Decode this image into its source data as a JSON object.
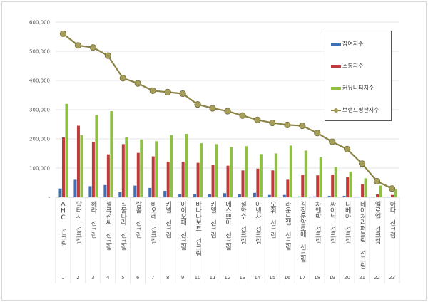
{
  "chart_data": {
    "type": "bar",
    "categories": [
      "AHC 선크림",
      "닥터지 선크림",
      "헤라 선크림",
      "셀퓨전씨 선크림",
      "식물나라 선크림",
      "랑콤 선크림",
      "비오레 선크림",
      "키넬 선크림",
      "아이오페 선크림",
      "바나나보트 선크림",
      "키엘 선크림",
      "에스쁘아 선크림",
      "설화수 선크림",
      "아넷사 선크림",
      "오휘 선크림",
      "라운드랩 선크림",
      "김정문알로에 선크림",
      "차앤박 선크림",
      "싸이닉 선크림",
      "니베아 선크림",
      "네이처리퍼블릭 선크림",
      "엘로엘 선크림",
      "아다 선크림"
    ],
    "category_numbers": [
      "1",
      "2",
      "3",
      "4",
      "5",
      "6",
      "7",
      "8",
      "9",
      "10",
      "11",
      "12",
      "13",
      "14",
      "15",
      "16",
      "17",
      "18",
      "19",
      "20",
      "21",
      "22",
      "23"
    ],
    "series": [
      {
        "name": "참여지수",
        "type": "bar",
        "color": "#3f6fb5",
        "values": [
          30000,
          60000,
          38000,
          42000,
          17000,
          40000,
          32000,
          22000,
          12000,
          12000,
          10000,
          14000,
          10000,
          15000,
          8000,
          8000,
          3000,
          3000,
          5000,
          5000,
          2000,
          2000,
          2000
        ]
      },
      {
        "name": "소통지수",
        "type": "bar",
        "color": "#c0393b",
        "values": [
          205000,
          245000,
          190000,
          147000,
          182000,
          152000,
          140000,
          122000,
          122000,
          118000,
          110000,
          108000,
          92000,
          98000,
          92000,
          60000,
          78000,
          75000,
          78000,
          70000,
          45000,
          10000,
          8000
        ]
      },
      {
        "name": "커뮤니티지수",
        "type": "bar",
        "color": "#8fbf45",
        "values": [
          320000,
          213000,
          282000,
          295000,
          205000,
          198000,
          192000,
          213000,
          217000,
          185000,
          182000,
          172000,
          175000,
          148000,
          150000,
          177000,
          160000,
          137000,
          104000,
          88000,
          65000,
          40000,
          28000
        ]
      },
      {
        "name": "브랜드평판지수",
        "type": "line",
        "color": "#8a8345",
        "values": [
          560000,
          520000,
          513000,
          485000,
          408000,
          390000,
          365000,
          360000,
          355000,
          318000,
          305000,
          295000,
          280000,
          265000,
          255000,
          248000,
          245000,
          220000,
          190000,
          165000,
          115000,
          55000,
          30000
        ]
      }
    ],
    "yticks": [
      "-",
      "100,000",
      "200,000",
      "300,000",
      "400,000",
      "500,000",
      "600,000"
    ],
    "ylim": [
      0,
      600000
    ],
    "grid": true,
    "legend": "right"
  }
}
